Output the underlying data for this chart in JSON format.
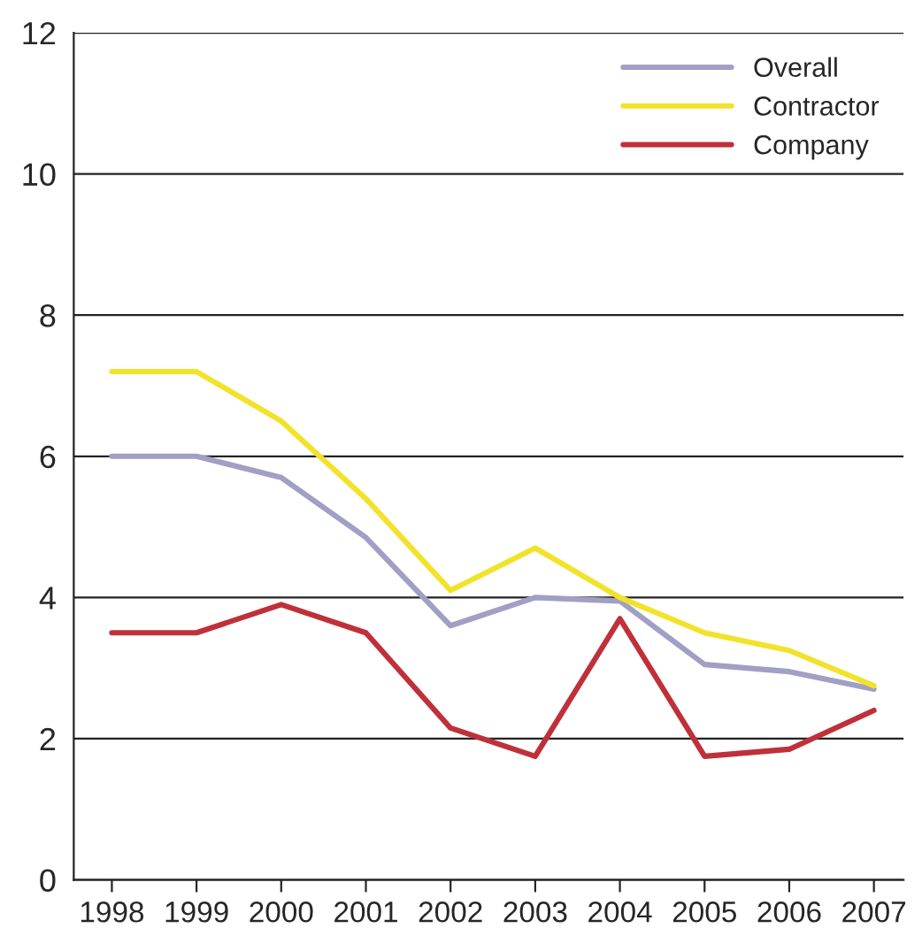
{
  "chart_data": {
    "type": "line",
    "categories": [
      "1998",
      "1999",
      "2000",
      "2001",
      "2002",
      "2003",
      "2004",
      "2005",
      "2006",
      "2007"
    ],
    "series": [
      {
        "name": "Overall",
        "color": "#a09fc4",
        "values": [
          6.0,
          6.0,
          5.7,
          4.85,
          3.6,
          4.0,
          3.95,
          3.05,
          2.95,
          2.7
        ]
      },
      {
        "name": "Contractor",
        "color": "#f2e22a",
        "values": [
          7.2,
          7.2,
          6.5,
          5.4,
          4.1,
          4.7,
          4.0,
          3.5,
          3.25,
          2.75
        ]
      },
      {
        "name": "Company",
        "color": "#c0303a",
        "values": [
          3.5,
          3.5,
          3.9,
          3.5,
          2.15,
          1.75,
          3.7,
          1.75,
          1.85,
          2.4
        ]
      }
    ],
    "ylim": [
      0,
      12
    ],
    "yticks": [
      0,
      2,
      4,
      6,
      8,
      10,
      12
    ],
    "grid": "y",
    "legend": "top right",
    "marker": "none",
    "line_style": "solid"
  }
}
